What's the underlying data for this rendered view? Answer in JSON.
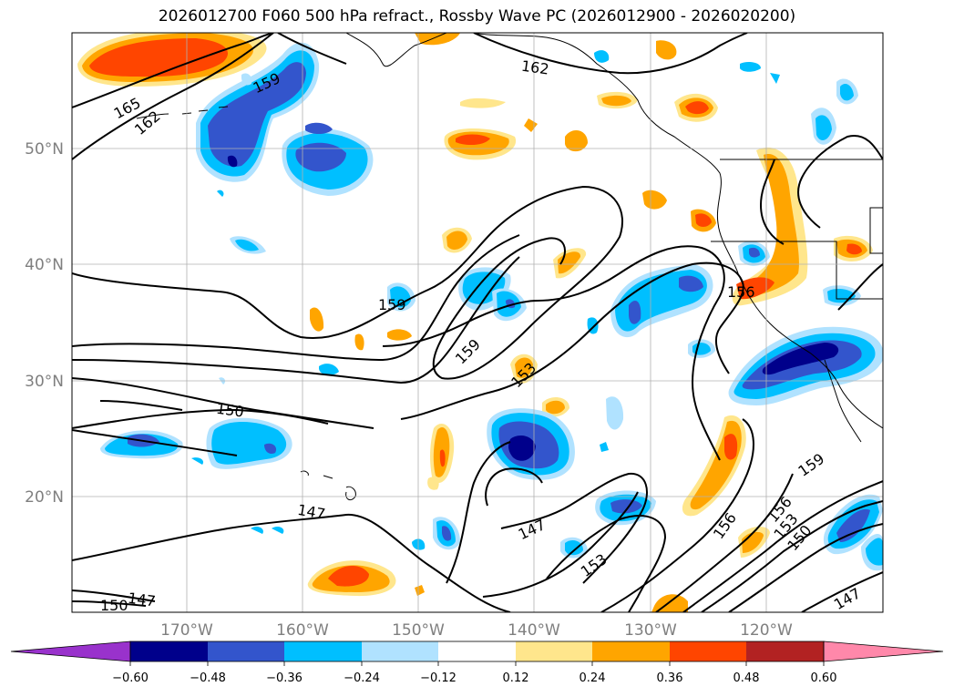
{
  "title": "2026012700 F060 500 hPa refract., Rossby Wave PC (2026012900 - 2026020200)",
  "map": {
    "lat_labels": [
      "50°N",
      "40°N",
      "30°N",
      "20°N"
    ],
    "lon_labels": [
      "170°W",
      "160°W",
      "150°W",
      "140°W",
      "130°W",
      "120°W"
    ],
    "contour_labels": [
      "165",
      "162",
      "159",
      "162",
      "159",
      "159",
      "156",
      "153",
      "150",
      "147",
      "147",
      "147",
      "150",
      "153",
      "156",
      "156",
      "153",
      "150",
      "159",
      "147"
    ]
  },
  "colorbar": {
    "ticks": [
      "−0.60",
      "−0.48",
      "−0.36",
      "−0.24",
      "−0.12",
      "0.12",
      "0.24",
      "0.36",
      "0.48",
      "0.60"
    ],
    "colors": [
      "#9932cc",
      "#00008b",
      "#3355cc",
      "#00bfff",
      "#b0e2ff",
      "#ffffff",
      "#ffe68c",
      "#ffa500",
      "#ff4500",
      "#b22222",
      "#ff88aa"
    ]
  },
  "colors": {
    "pos_light": "#ffe68c",
    "pos_mid": "#ffa500",
    "pos_strong": "#ff4500",
    "neg_light": "#b0e2ff",
    "neg_mid": "#00bfff",
    "neg_strong": "#3355cc",
    "neg_max": "#00008b"
  }
}
